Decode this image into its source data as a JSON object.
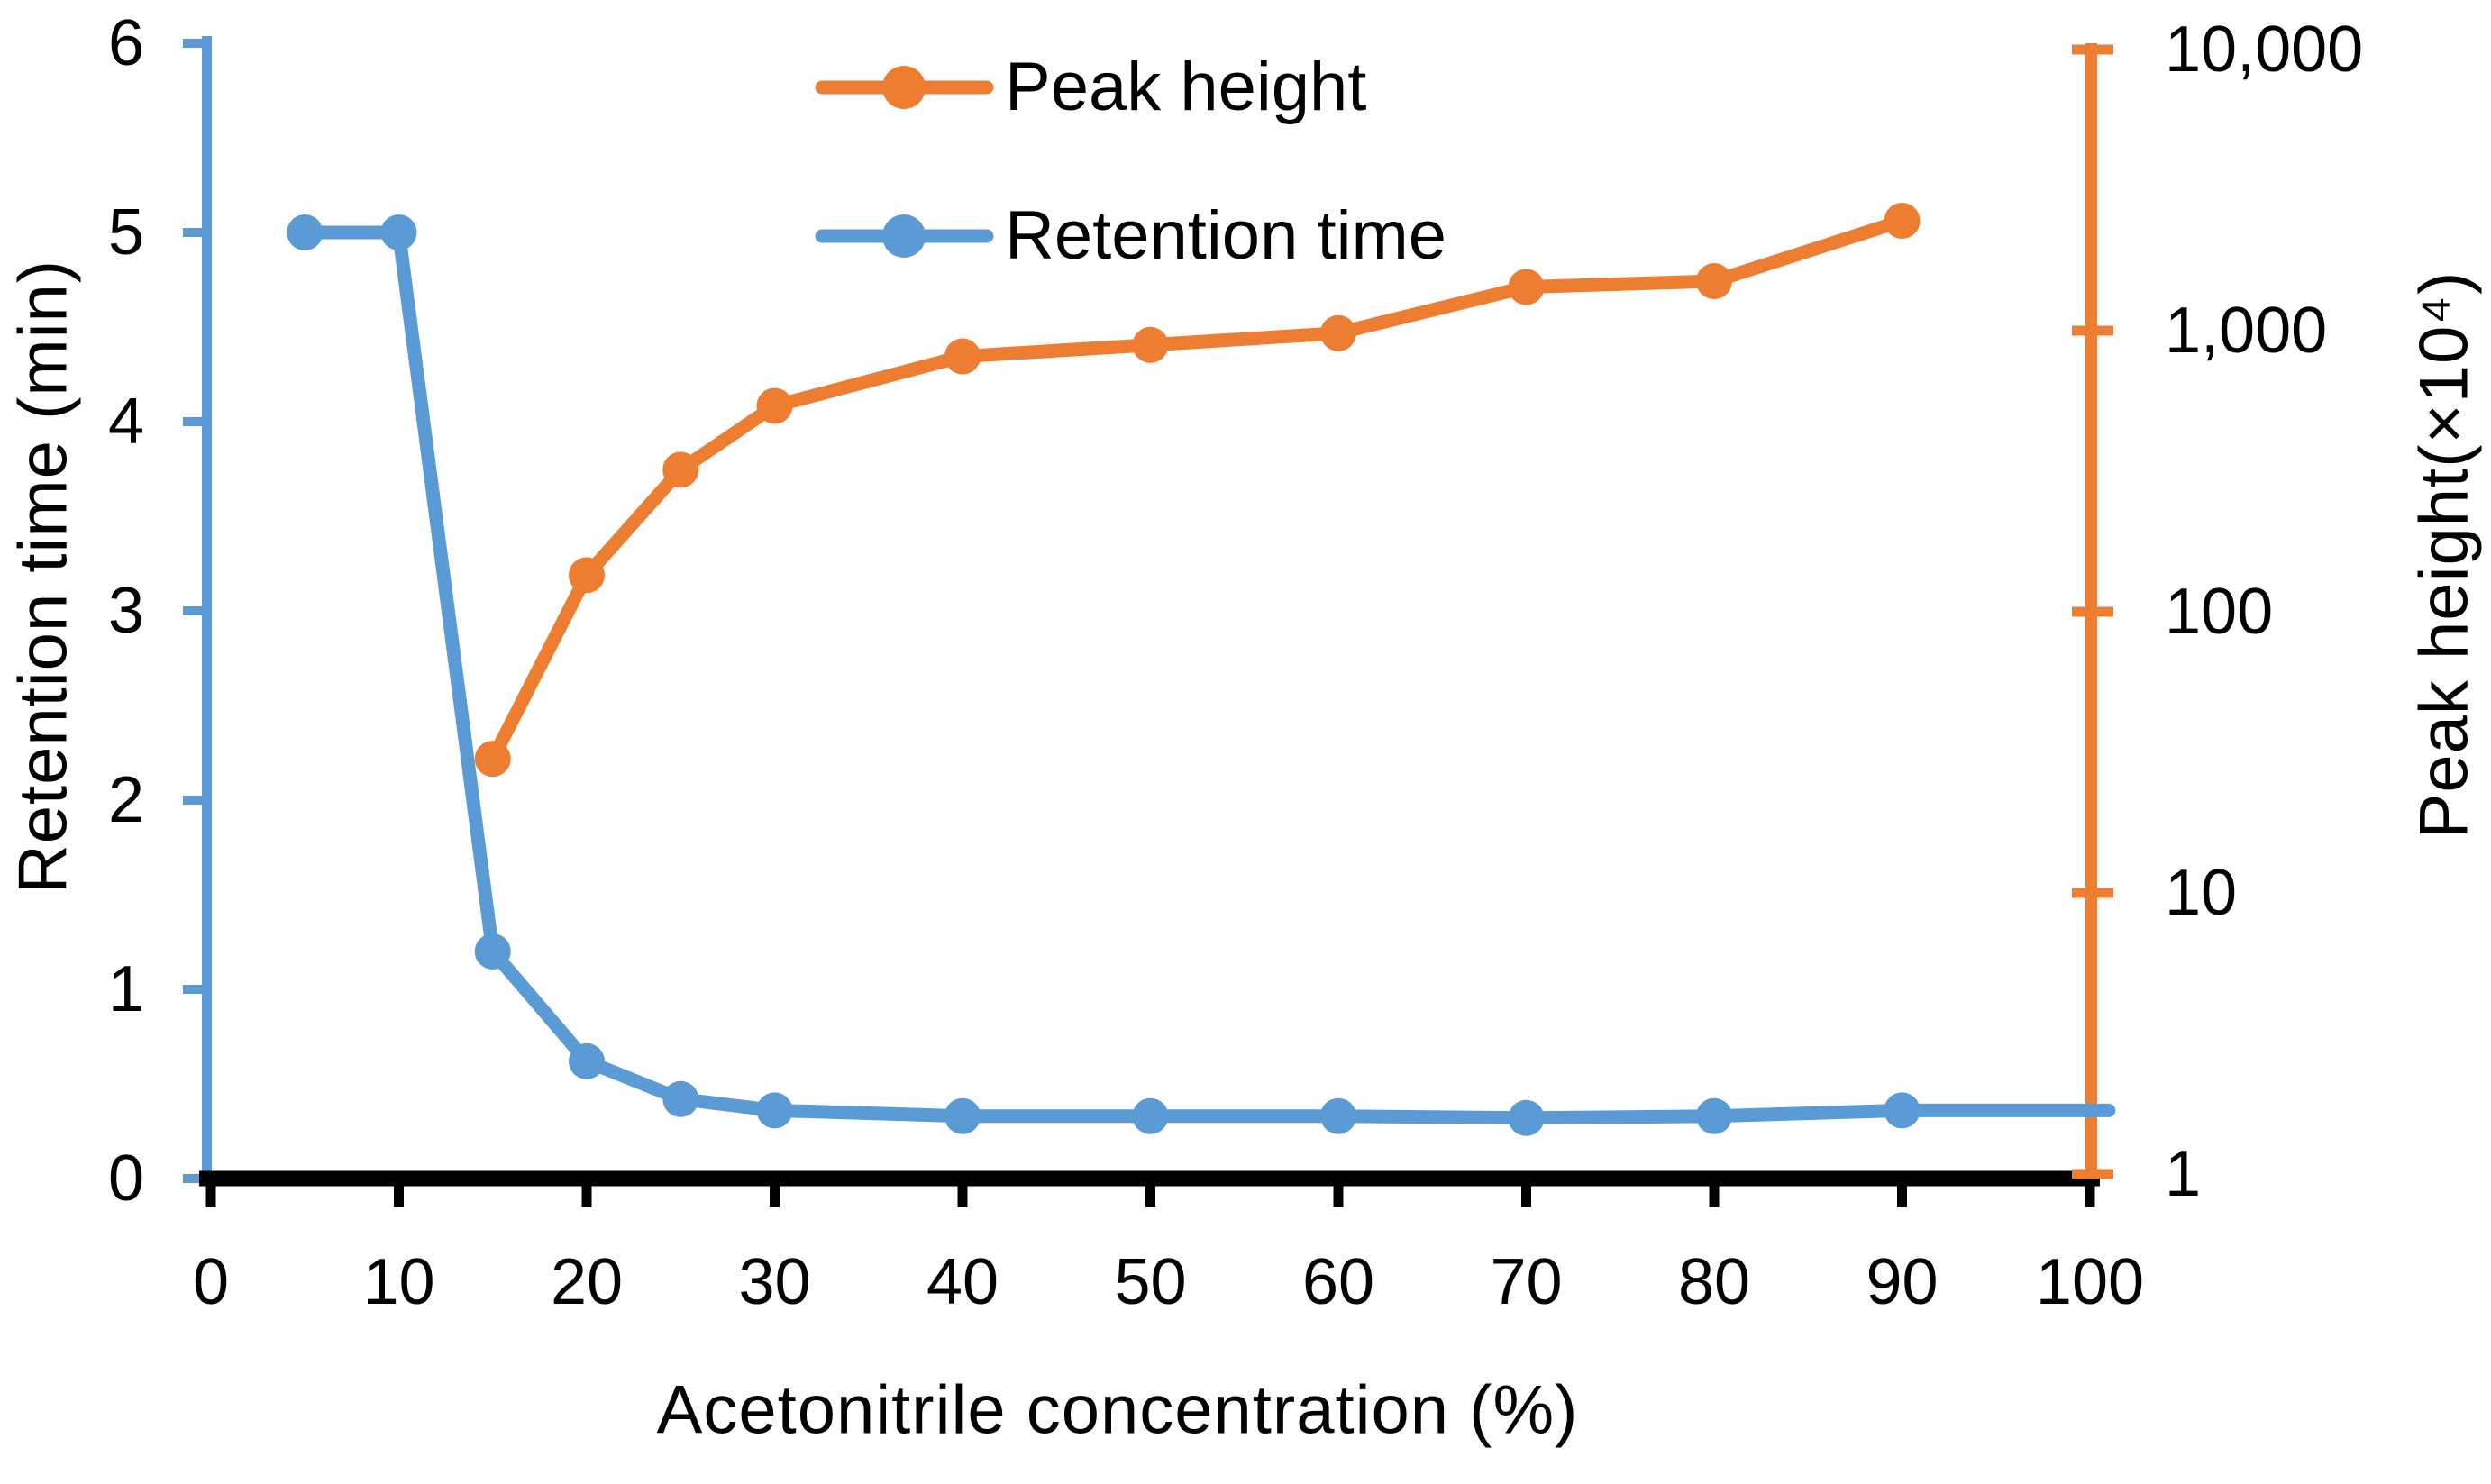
{
  "figure": {
    "background": "#ffffff",
    "text_color": "#000000"
  },
  "legend": {
    "position": "top-center",
    "items": [
      {
        "label": "Peak height",
        "color": "#ED7D31"
      },
      {
        "label": "Retention time",
        "color": "#5B9BD5"
      }
    ]
  },
  "chart_data": {
    "type": "line",
    "title": "",
    "grid": false,
    "xlabel": "Acetonitrile concentration (%)",
    "x_axis": {
      "range": [
        0,
        100
      ],
      "tick_values": [
        0,
        10,
        20,
        30,
        40,
        50,
        60,
        70,
        80,
        90,
        100
      ],
      "tick_labels": [
        "0",
        "10",
        "20",
        "30",
        "40",
        "50",
        "60",
        "70",
        "80",
        "90",
        "100"
      ],
      "color": "#000000"
    },
    "left_axis": {
      "label": "Retention time (min)",
      "scale": "linear",
      "range": [
        0,
        6
      ],
      "tick_values": [
        0,
        1,
        2,
        3,
        4,
        5,
        6
      ],
      "tick_labels": [
        "0",
        "1",
        "2",
        "3",
        "4",
        "5",
        "6"
      ],
      "color": "#5B9BD5"
    },
    "right_axis": {
      "label": "Peak height(×10⁴)",
      "scale": "log",
      "range": [
        1,
        10000
      ],
      "tick_values": [
        1,
        10,
        100,
        1000,
        10000
      ],
      "tick_labels": [
        "1",
        "10",
        "100",
        "1,000",
        "10,000"
      ],
      "color": "#ED7D31"
    },
    "series": [
      {
        "name": "Retention time",
        "axis": "left",
        "color": "#5B9BD5",
        "x": [
          5,
          10,
          15,
          20,
          25,
          30,
          40,
          50,
          60,
          70,
          80,
          90
        ],
        "values": [
          5.0,
          5.0,
          1.2,
          0.62,
          0.42,
          0.36,
          0.33,
          0.33,
          0.33,
          0.32,
          0.33,
          0.36
        ],
        "line_extends_to_x": 101
      },
      {
        "name": "Peak height",
        "axis": "right",
        "color": "#ED7D31",
        "x": [
          15,
          20,
          25,
          30,
          40,
          50,
          60,
          70,
          80,
          90
        ],
        "values": [
          30,
          135,
          320,
          540,
          810,
          890,
          980,
          1430,
          1500,
          2460
        ]
      }
    ]
  }
}
